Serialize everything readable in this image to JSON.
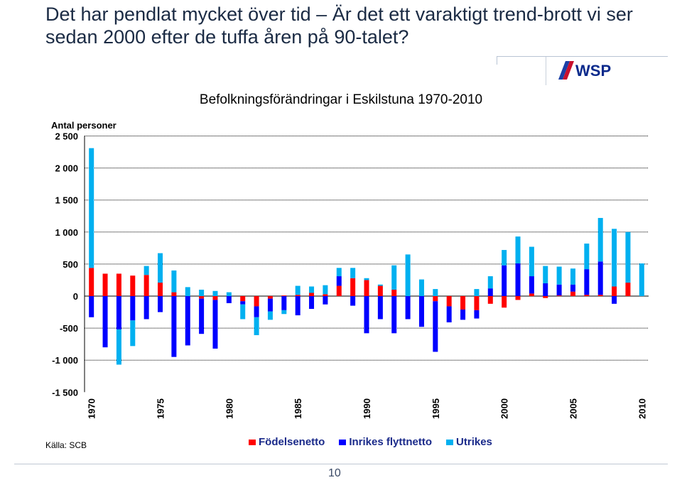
{
  "slide": {
    "title": "Det har pendlat mycket över tid – Är det ett varaktigt trend-brott vi ser sedan 2000 efter de tuffa åren på 90-talet?",
    "source": "Källa: SCB",
    "page_number": "10",
    "logo_text": "WSP"
  },
  "colors": {
    "fodelsenetto": "#ff0000",
    "inrikes": "#0000ff",
    "utrikes": "#00b0f0",
    "title": "#1b2b44",
    "logo": "#0b2a8c"
  },
  "chart_data": {
    "type": "bar",
    "stacked": true,
    "title": "Befolkningsförändringar  i Eskilstuna 1970-2010",
    "ylabel": "Antal personer",
    "ylim": [
      -1500,
      2500
    ],
    "yticks": [
      2500,
      2000,
      1500,
      1000,
      500,
      0,
      -500,
      -1000,
      -1500
    ],
    "ytick_labels": [
      "2 500",
      "2 000",
      "1 500",
      "1 000",
      "500",
      "0",
      "-500",
      "-1 000",
      "-1 500"
    ],
    "grid": "horizontal dashed",
    "legend_position": "bottom",
    "categories": [
      1970,
      1971,
      1972,
      1973,
      1974,
      1975,
      1976,
      1977,
      1978,
      1979,
      1980,
      1981,
      1982,
      1983,
      1984,
      1985,
      1986,
      1987,
      1988,
      1989,
      1990,
      1991,
      1992,
      1993,
      1994,
      1995,
      1996,
      1997,
      1998,
      1999,
      2000,
      2001,
      2002,
      2003,
      2004,
      2005,
      2006,
      2007,
      2008,
      2009,
      2010
    ],
    "xtick_labels": [
      "1970",
      "1975",
      "1980",
      "1985",
      "1990",
      "1995",
      "2000",
      "2005",
      "2010"
    ],
    "xtick_years": [
      1970,
      1975,
      1980,
      1985,
      1990,
      1995,
      2000,
      2005,
      2010
    ],
    "series": [
      {
        "name": "Födelsenetto",
        "key": "fodelsenetto",
        "values": [
          440,
          350,
          350,
          320,
          330,
          210,
          60,
          0,
          -40,
          -60,
          0,
          -80,
          -160,
          -40,
          10,
          20,
          50,
          30,
          160,
          280,
          250,
          160,
          100,
          0,
          0,
          -80,
          -160,
          -210,
          -220,
          -120,
          -180,
          -60,
          40,
          -30,
          10,
          70,
          20,
          20,
          150,
          210,
          0
        ]
      },
      {
        "name": "Inrikes flyttnetto",
        "key": "inrikes",
        "values": [
          -330,
          -800,
          -520,
          -380,
          -360,
          -250,
          -950,
          -770,
          -550,
          -760,
          -110,
          -50,
          -170,
          -200,
          -220,
          -300,
          -200,
          -130,
          150,
          -150,
          -580,
          -360,
          -580,
          -360,
          -480,
          -790,
          -250,
          -160,
          -130,
          120,
          480,
          510,
          270,
          200,
          170,
          110,
          400,
          520,
          -120,
          0,
          0
        ]
      },
      {
        "name": "Utrikes",
        "key": "utrikes",
        "values": [
          1870,
          0,
          -550,
          -400,
          140,
          460,
          340,
          140,
          100,
          80,
          60,
          -230,
          -280,
          -130,
          -60,
          140,
          100,
          140,
          130,
          160,
          30,
          20,
          380,
          650,
          260,
          110,
          0,
          0,
          110,
          190,
          240,
          420,
          460,
          270,
          280,
          250,
          400,
          680,
          900,
          790,
          510
        ]
      }
    ]
  }
}
